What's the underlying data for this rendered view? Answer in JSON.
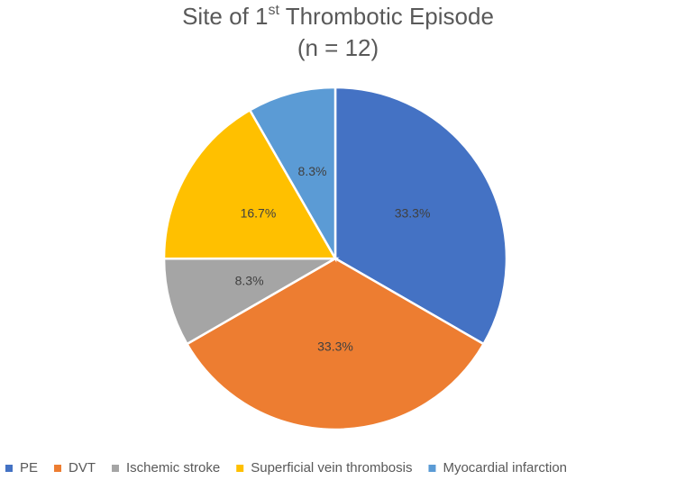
{
  "chart_data": {
    "type": "pie",
    "title": "Site of 1st Thrombotic Episode",
    "subtitle": "(n = 12)",
    "categories": [
      "PE",
      "DVT",
      "Ischemic stroke",
      "Superficial vein thrombosis",
      "Myocardial infarction"
    ],
    "values": [
      33.3,
      33.3,
      8.3,
      16.7,
      8.3
    ],
    "value_labels": [
      "33.3%",
      "33.3%",
      "8.3%",
      "16.7%",
      "8.3%"
    ],
    "colors": [
      "#4472c4",
      "#ed7d31",
      "#a5a5a5",
      "#ffc000",
      "#5b9bd5"
    ],
    "legend": "bottom"
  }
}
